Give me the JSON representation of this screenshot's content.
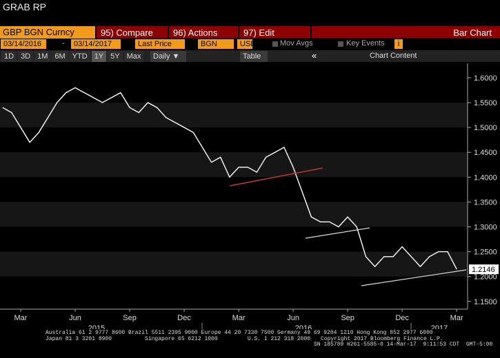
{
  "header": {
    "title": "GRAB RP"
  },
  "toolbar": {
    "security": "GBP BGN Curncy",
    "compare": "95) Compare",
    "actions": "96) Actions",
    "edit": "97) Edit",
    "chart_type": "Bar Chart"
  },
  "controls": {
    "start_date": "03/14/2016",
    "dash": "-",
    "end_date": "03/14/2017",
    "field": "Last Price",
    "source": "BGN",
    "currency": "USD",
    "mov_avgs": "Mov Avgs",
    "key_events": "Key Events",
    "info": "i"
  },
  "periods": [
    "1D",
    "3D",
    "1M",
    "6M",
    "YTD",
    "1Y",
    "5Y",
    "Max"
  ],
  "frequency": "Daily ▼",
  "table": "Table",
  "collapse": "«",
  "chart_content": "Chart Content",
  "chart_data": {
    "type": "line",
    "color": "#ffffff",
    "categories": [
      null,
      null,
      "Mar",
      null,
      null,
      null,
      null,
      null,
      "Jun",
      null,
      null,
      null,
      null,
      null,
      "Sep",
      null,
      null,
      null,
      null,
      null,
      "Dec",
      null,
      null,
      null,
      null,
      null,
      "Mar",
      null,
      null,
      null,
      null,
      null,
      "Jun",
      null,
      null,
      null,
      null,
      null,
      "Sep",
      null,
      null,
      null,
      null,
      null,
      "Dec",
      null,
      null,
      null,
      null,
      null,
      "Mar"
    ],
    "values": [
      1.54,
      1.53,
      1.5,
      1.47,
      1.49,
      1.52,
      1.55,
      1.57,
      1.58,
      1.57,
      1.56,
      1.55,
      1.56,
      1.57,
      1.54,
      1.53,
      1.55,
      1.54,
      1.52,
      1.51,
      1.5,
      1.49,
      1.46,
      1.43,
      1.44,
      1.4,
      1.42,
      1.42,
      1.41,
      1.44,
      1.45,
      1.46,
      1.42,
      1.37,
      1.32,
      1.31,
      1.31,
      1.3,
      1.32,
      1.3,
      1.24,
      1.22,
      1.24,
      1.24,
      1.26,
      1.24,
      1.22,
      1.24,
      1.25,
      1.25,
      1.2146
    ],
    "year_labels": [
      "2015",
      "2016",
      "2017"
    ],
    "ylim": [
      1.14,
      1.629
    ],
    "yticks": [
      {
        "value": 1.15,
        "label": "1.1500"
      },
      {
        "value": 1.2,
        "label": "1.2000"
      },
      {
        "value": 1.25,
        "label": "1.2500"
      },
      {
        "value": 1.3,
        "label": "1.3000"
      },
      {
        "value": 1.35,
        "label": "1.3500"
      },
      {
        "value": 1.4,
        "label": "1.4000"
      },
      {
        "value": 1.45,
        "label": "1.4500"
      },
      {
        "value": 1.5,
        "label": "1.5000"
      },
      {
        "value": 1.55,
        "label": "1.5500"
      },
      {
        "value": 1.6,
        "label": "1.6000"
      }
    ]
  },
  "footer": {
    "lines": [
      "Australia 61 2 9777 8600 Brazil 5511 2395 9000 Europe 44 20 7330 7500 Germany 49 69 9204 1210 Hong Kong 852 2977 6000",
      "Japan 81 3 3201 8900          Singapore 65 6212 1000         U.S. 1 212 318 2000"
    ],
    "copyright": "Copyright 2017 Bloomberg Finance L.P.",
    "session": "SN 185789 H261-5585-0 14-Mar-17  9:11:53 CDT  GMT-5:00"
  }
}
